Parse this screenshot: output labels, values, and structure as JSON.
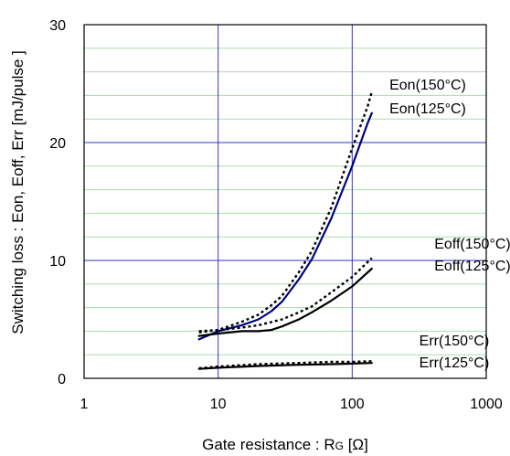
{
  "chart_data": {
    "type": "line",
    "title": "",
    "xlabel": "Gate resistance : RG [Ω]",
    "xlabel_main": "Gate resistance : R",
    "xlabel_sub": "G",
    "xlabel_unit": " [Ω]",
    "ylabel": "Switching loss : Eon, Eoff, Err  [mJ/pulse ]",
    "x_scale": "log",
    "xlim": [
      1,
      1000
    ],
    "ylim": [
      0,
      30
    ],
    "x_ticks": [
      1,
      10,
      100,
      1000
    ],
    "x_tick_labels": [
      "1",
      "10",
      "100",
      "1000"
    ],
    "y_ticks": [
      0,
      10,
      20,
      30
    ],
    "y_tick_labels": [
      "0",
      "10",
      "20",
      "30"
    ],
    "grid": true,
    "colors": {
      "major_grid": "#3333cc",
      "minor_grid": "#aaddaa",
      "eon_125": "#000080",
      "other_series": "#000000"
    },
    "series": [
      {
        "name": "Eon(150°C)",
        "style": "dotted",
        "x": [
          7.2,
          10,
          15,
          20,
          25,
          30,
          40,
          50,
          70,
          100,
          130,
          140
        ],
        "y": [
          3.9,
          4.1,
          4.8,
          5.4,
          6.2,
          7.0,
          9.0,
          10.8,
          14.5,
          19.5,
          23.0,
          24.3
        ]
      },
      {
        "name": "Eon(125°C)",
        "style": "solid",
        "x": [
          7.2,
          10,
          15,
          20,
          25,
          30,
          40,
          50,
          70,
          100,
          130,
          140
        ],
        "y": [
          3.3,
          4.0,
          4.5,
          5.0,
          5.7,
          6.5,
          8.4,
          10.1,
          13.6,
          18.0,
          21.6,
          22.5
        ]
      },
      {
        "name": "Eoff(150°C)",
        "style": "dotted",
        "x": [
          7.2,
          10,
          15,
          20,
          30,
          40,
          50,
          70,
          100,
          140
        ],
        "y": [
          4.0,
          4.1,
          4.3,
          4.5,
          5.0,
          5.6,
          6.1,
          7.3,
          8.6,
          10.2
        ]
      },
      {
        "name": "Eoff(125°C)",
        "style": "solid",
        "x": [
          7.2,
          10,
          15,
          20,
          25,
          30,
          40,
          50,
          70,
          100,
          140
        ],
        "y": [
          3.6,
          3.8,
          4.0,
          4.0,
          4.1,
          4.4,
          5.0,
          5.6,
          6.6,
          7.8,
          9.3
        ]
      },
      {
        "name": "Err(150°C)",
        "style": "dotted",
        "x": [
          7.2,
          10,
          20,
          40,
          70,
          100,
          140
        ],
        "y": [
          0.85,
          1.0,
          1.2,
          1.3,
          1.4,
          1.4,
          1.45
        ]
      },
      {
        "name": "Err(125°C)",
        "style": "solid",
        "x": [
          7.2,
          10,
          20,
          40,
          70,
          100,
          140
        ],
        "y": [
          0.8,
          0.9,
          1.05,
          1.15,
          1.2,
          1.25,
          1.3
        ]
      }
    ],
    "curve_labels": [
      {
        "text": "Eon(150°C)"
      },
      {
        "text": "Eon(125°C)"
      },
      {
        "text": "Eoff(150°C)"
      },
      {
        "text": "Eoff(125°C)"
      },
      {
        "text": "Err(150°C)"
      },
      {
        "text": "Err(125°C)"
      }
    ]
  }
}
